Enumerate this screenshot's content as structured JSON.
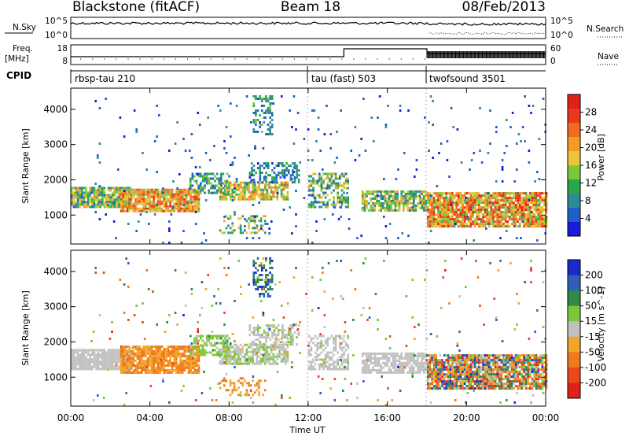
{
  "header": {
    "station": "Blackstone (fitACF)",
    "beam": "Beam 18",
    "date": "08/Feb/2013"
  },
  "labels": {
    "nsky": "N.Sky",
    "nsearch": "N.Search",
    "freq": "Freq.",
    "freq_unit": "[MHz]",
    "nave": "Nave",
    "cpid": "CPID",
    "time_axis": "Time UT",
    "slant_range": "Slant Range [km]"
  },
  "noise_panel": {
    "left_ticks": [
      "10^5",
      "10^0"
    ],
    "right_ticks": [
      "10^5",
      "10^0"
    ]
  },
  "freq_panel": {
    "left_ticks": [
      "18",
      "8"
    ],
    "right_ticks": [
      "60",
      "0"
    ]
  },
  "cpid_segments": [
    {
      "label": "rbsp-tau 210",
      "start_hour": 0
    },
    {
      "label": "tau (fast) 503",
      "start_hour": 12
    },
    {
      "label": "twofsound 3501",
      "start_hour": 18
    }
  ],
  "range_ticks": [
    "1000",
    "2000",
    "3000",
    "4000"
  ],
  "time_ticks": [
    "00:00",
    "04:00",
    "08:00",
    "12:00",
    "16:00",
    "20:00",
    "00:00"
  ],
  "power_scale": {
    "label": "Power [dB]",
    "ticks": [
      "4",
      "8",
      "12",
      "16",
      "20",
      "24",
      "28"
    ],
    "colors": [
      "#1a1adb",
      "#1e5fc8",
      "#2d8a96",
      "#2aa74a",
      "#7cc83a",
      "#e8c63a",
      "#f39c2a",
      "#ef6b1f",
      "#e83a1a",
      "#e0201a"
    ]
  },
  "velocity_scale": {
    "label": "Velocity [m s^-1]",
    "ticks": [
      "200",
      "100",
      "50",
      "15",
      "-15",
      "-50",
      "-100",
      "-200"
    ],
    "colors": [
      "#1a2acc",
      "#2f5fb8",
      "#2f8a4a",
      "#7cc83a",
      "#c0c0c0",
      "#f3a52a",
      "#ef7a1f",
      "#e84a1a",
      "#e0201a"
    ]
  },
  "chart_data": [
    {
      "type": "heatmap",
      "title": "",
      "xlabel": "Time UT",
      "ylabel": "Slant Range [km]",
      "xlim": [
        0,
        24
      ],
      "ylim": [
        180,
        4600
      ],
      "colorbar": "Power [dB]",
      "clim": [
        0,
        32
      ],
      "regions": [
        {
          "t": [
            0.0,
            3.0
          ],
          "r": [
            1200,
            1800
          ],
          "dens": 0.9,
          "v": [
            5,
            22
          ]
        },
        {
          "t": [
            2.5,
            6.5
          ],
          "r": [
            1100,
            1750
          ],
          "dens": 0.9,
          "v": [
            14,
            28
          ]
        },
        {
          "t": [
            6.0,
            8.0
          ],
          "r": [
            1600,
            2200
          ],
          "dens": 0.6,
          "v": [
            4,
            16
          ]
        },
        {
          "t": [
            7.5,
            11.0
          ],
          "r": [
            1450,
            1950
          ],
          "dens": 0.75,
          "v": [
            10,
            24
          ]
        },
        {
          "t": [
            9.0,
            11.5
          ],
          "r": [
            1900,
            2500
          ],
          "dens": 0.5,
          "v": [
            2,
            12
          ]
        },
        {
          "t": [
            9.2,
            10.2
          ],
          "r": [
            3300,
            4400
          ],
          "dens": 0.45,
          "v": [
            3,
            14
          ]
        },
        {
          "t": [
            7.5,
            9.8
          ],
          "r": [
            500,
            1000
          ],
          "dens": 0.35,
          "v": [
            6,
            20
          ]
        },
        {
          "t": [
            12.0,
            14.0
          ],
          "r": [
            1200,
            2200
          ],
          "dens": 0.55,
          "v": [
            4,
            20
          ]
        },
        {
          "t": [
            14.7,
            18.0
          ],
          "r": [
            1150,
            1700
          ],
          "dens": 0.8,
          "v": [
            6,
            22
          ]
        },
        {
          "t": [
            18.0,
            24.0
          ],
          "r": [
            700,
            1650
          ],
          "dens": 0.9,
          "v": [
            12,
            30
          ]
        },
        {
          "t": [
            1.0,
            24.0
          ],
          "r": [
            200,
            4400
          ],
          "dens": 0.02,
          "v": [
            2,
            8
          ]
        }
      ]
    },
    {
      "type": "heatmap",
      "title": "",
      "xlabel": "Time UT",
      "ylabel": "Slant Range [km]",
      "xlim": [
        0,
        24
      ],
      "ylim": [
        180,
        4600
      ],
      "colorbar": "Velocity [m s^-1]",
      "clim": [
        -250,
        250
      ],
      "regions": [
        {
          "t": [
            0.0,
            3.0
          ],
          "r": [
            1200,
            1800
          ],
          "dens": 0.9,
          "v": [
            -20,
            20
          ]
        },
        {
          "t": [
            2.5,
            6.5
          ],
          "r": [
            1100,
            1900
          ],
          "dens": 0.9,
          "v": [
            -140,
            -30
          ]
        },
        {
          "t": [
            6.0,
            8.0
          ],
          "r": [
            1600,
            2200
          ],
          "dens": 0.6,
          "v": [
            15,
            90
          ]
        },
        {
          "t": [
            7.5,
            11.0
          ],
          "r": [
            1400,
            1950
          ],
          "dens": 0.75,
          "v": [
            -30,
            60
          ]
        },
        {
          "t": [
            9.0,
            11.5
          ],
          "r": [
            1900,
            2500
          ],
          "dens": 0.5,
          "v": [
            -10,
            40
          ]
        },
        {
          "t": [
            9.2,
            10.2
          ],
          "r": [
            3300,
            4400
          ],
          "dens": 0.45,
          "v": [
            80,
            250
          ]
        },
        {
          "t": [
            7.5,
            9.8
          ],
          "r": [
            500,
            1000
          ],
          "dens": 0.35,
          "v": [
            -120,
            -40
          ]
        },
        {
          "t": [
            12.0,
            14.0
          ],
          "r": [
            1200,
            2200
          ],
          "dens": 0.55,
          "v": [
            -20,
            30
          ]
        },
        {
          "t": [
            14.7,
            18.0
          ],
          "r": [
            1150,
            1700
          ],
          "dens": 0.8,
          "v": [
            -20,
            25
          ]
        },
        {
          "t": [
            18.0,
            24.0
          ],
          "r": [
            700,
            1650
          ],
          "dens": 0.9,
          "v": [
            -220,
            220
          ]
        },
        {
          "t": [
            1.0,
            24.0
          ],
          "r": [
            200,
            4400
          ],
          "dens": 0.02,
          "v": [
            -200,
            200
          ]
        }
      ]
    }
  ]
}
